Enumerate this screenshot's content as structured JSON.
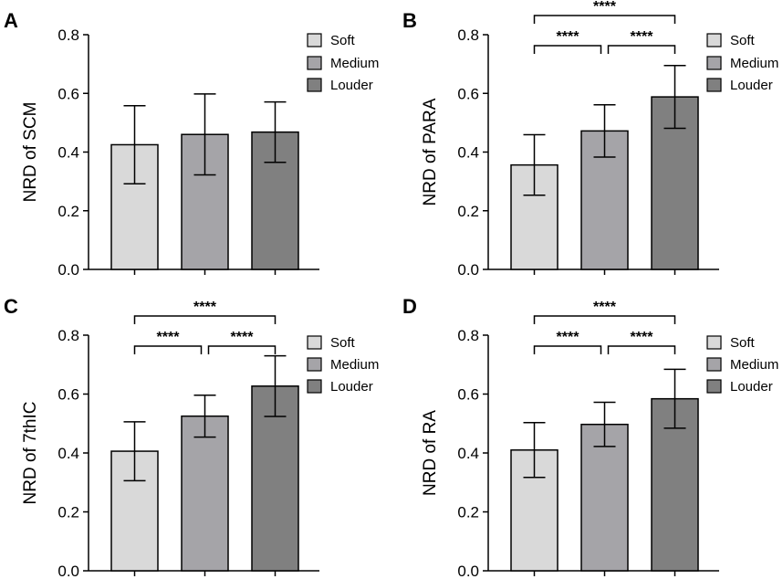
{
  "legend": {
    "labels": [
      "Soft",
      "Medium",
      "Louder"
    ],
    "colors": [
      "#d9d9d9",
      "#a5a4a8",
      "#808080"
    ]
  },
  "chart_data": [
    {
      "panel": "A",
      "type": "bar",
      "ylabel": "NRD of SCM",
      "ylim": [
        0,
        0.8
      ],
      "yticks": [
        "0.0",
        "0.2",
        "0.4",
        "0.6",
        "0.8"
      ],
      "ytick_values": [
        0,
        0.2,
        0.4,
        0.6,
        0.8
      ],
      "categories": [
        "Soft",
        "Medium",
        "Louder"
      ],
      "values": [
        0.425,
        0.46,
        0.468
      ],
      "errors": [
        0.133,
        0.138,
        0.103
      ],
      "significance": []
    },
    {
      "panel": "B",
      "type": "bar",
      "ylabel": "NRD of PARA",
      "ylim": [
        0,
        0.8
      ],
      "yticks": [
        "0.0",
        "0.2",
        "0.4",
        "0.6",
        "0.8"
      ],
      "ytick_values": [
        0,
        0.2,
        0.4,
        0.6,
        0.8
      ],
      "categories": [
        "Soft",
        "Medium",
        "Louder"
      ],
      "values": [
        0.356,
        0.472,
        0.588
      ],
      "errors": [
        0.103,
        0.089,
        0.107
      ],
      "significance": [
        {
          "from": 0,
          "to": 1,
          "label": "****",
          "level": 0
        },
        {
          "from": 1,
          "to": 2,
          "label": "****",
          "level": 0
        },
        {
          "from": 0,
          "to": 2,
          "label": "****",
          "level": 1
        }
      ]
    },
    {
      "panel": "C",
      "type": "bar",
      "ylabel": "NRD of 7thIC",
      "ylim": [
        0,
        0.8
      ],
      "yticks": [
        "0.0",
        "0.2",
        "0.4",
        "0.6",
        "0.8"
      ],
      "ytick_values": [
        0,
        0.2,
        0.4,
        0.6,
        0.8
      ],
      "categories": [
        "Soft",
        "Medium",
        "Louder"
      ],
      "values": [
        0.406,
        0.525,
        0.627
      ],
      "errors": [
        0.1,
        0.071,
        0.103
      ],
      "significance": [
        {
          "from": 0,
          "to": 1,
          "label": "****",
          "level": 0
        },
        {
          "from": 1,
          "to": 2,
          "label": "****",
          "level": 0
        },
        {
          "from": 0,
          "to": 2,
          "label": "****",
          "level": 1
        }
      ]
    },
    {
      "panel": "D",
      "type": "bar",
      "ylabel": "NRD of RA",
      "ylim": [
        0,
        0.8
      ],
      "yticks": [
        "0.0",
        "0.2",
        "0.4",
        "0.6",
        "0.8"
      ],
      "ytick_values": [
        0,
        0.2,
        0.4,
        0.6,
        0.8
      ],
      "categories": [
        "Soft",
        "Medium",
        "Louder"
      ],
      "values": [
        0.41,
        0.497,
        0.584
      ],
      "errors": [
        0.093,
        0.075,
        0.1
      ],
      "significance": [
        {
          "from": 0,
          "to": 1,
          "label": "****",
          "level": 0
        },
        {
          "from": 1,
          "to": 2,
          "label": "****",
          "level": 0
        },
        {
          "from": 0,
          "to": 2,
          "label": "****",
          "level": 1
        }
      ]
    }
  ]
}
